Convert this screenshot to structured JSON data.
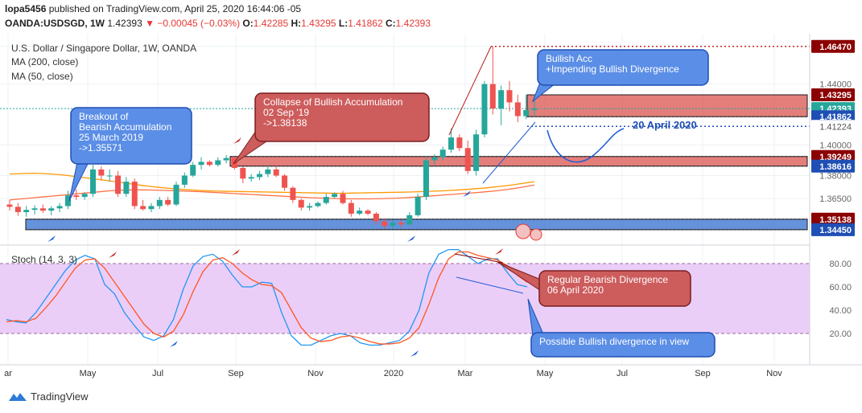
{
  "header": {
    "line1_user": "lopa5456",
    "line1_rest": "published on TradingView.com, April 25, 2020 16:44:06 -05",
    "symbol": "OANDA:USDSGD, 1W",
    "last": "1.42393",
    "change": "−0.00045 (−0.03%)",
    "open_label": "O:",
    "open": "1.42285",
    "high_label": "H:",
    "high": "1.43295",
    "low_label": "L:",
    "low": "1.41862",
    "close_label": "C:",
    "close": "1.42393"
  },
  "legend": {
    "title": "U.S. Dollar / Singapore Dollar, 1W, OANDA",
    "ma200": "MA (200, close)",
    "ma50": "MA (50, close)",
    "stoch": "Stoch (14, 3, 3)"
  },
  "footer": {
    "brand": "TradingView"
  },
  "colors": {
    "up": "#26a69a",
    "down": "#ef5350",
    "ma200": "#ff9800",
    "ma50": "#ff7043",
    "stoch_k": "#2196f3",
    "stoch_d": "#ff5722",
    "callout_blue": "#5b8ee6",
    "callout_red": "#cd5c5c",
    "zone_red": "#d9534f",
    "zone_blue": "#4a7fd4",
    "stoch_band": "#e8c6f7"
  },
  "chart_data": [
    {
      "type": "candlestick",
      "ylim": [
        1.336,
        1.473
      ],
      "x_labels": [
        "ar",
        "May",
        "Jul",
        "Sep",
        "Nov",
        "2020",
        "Mar",
        "May",
        "Jul",
        "Sep",
        "Nov"
      ],
      "price_ticks": [
        "1.46470",
        "1.44000",
        "1.40000",
        "1.38000",
        "1.36500"
      ],
      "price_badges": [
        {
          "value": "1.46470",
          "kind": "red"
        },
        {
          "value": "1.43295",
          "kind": "red"
        },
        {
          "value": "1.42393",
          "kind": "teal"
        },
        {
          "value": "1.41862",
          "kind": "blue"
        },
        {
          "value": "1.41224",
          "kind": "plain"
        },
        {
          "value": "1.39249",
          "kind": "red"
        },
        {
          "value": "1.38616",
          "kind": "blue"
        },
        {
          "value": "1.35138",
          "kind": "red"
        },
        {
          "value": "1.34450",
          "kind": "blue"
        }
      ],
      "candles": [
        [
          1.361,
          1.364,
          1.357,
          1.3595
        ],
        [
          1.3595,
          1.362,
          1.3535,
          1.356
        ],
        [
          1.356,
          1.36,
          1.353,
          1.3575
        ],
        [
          1.3575,
          1.3605,
          1.3545,
          1.3585
        ],
        [
          1.3585,
          1.361,
          1.3555,
          1.357
        ],
        [
          1.357,
          1.36,
          1.354,
          1.3585
        ],
        [
          1.3585,
          1.362,
          1.356,
          1.36
        ],
        [
          1.36,
          1.37,
          1.358,
          1.367
        ],
        [
          1.367,
          1.371,
          1.364,
          1.366
        ],
        [
          1.366,
          1.369,
          1.364,
          1.368
        ],
        [
          1.368,
          1.387,
          1.366,
          1.384
        ],
        [
          1.384,
          1.386,
          1.377,
          1.38
        ],
        [
          1.38,
          1.384,
          1.376,
          1.38
        ],
        [
          1.38,
          1.383,
          1.366,
          1.368
        ],
        [
          1.368,
          1.379,
          1.366,
          1.376
        ],
        [
          1.376,
          1.378,
          1.358,
          1.36
        ],
        [
          1.36,
          1.364,
          1.357,
          1.358
        ],
        [
          1.358,
          1.362,
          1.356,
          1.36
        ],
        [
          1.36,
          1.366,
          1.358,
          1.364
        ],
        [
          1.364,
          1.366,
          1.36,
          1.361
        ],
        [
          1.361,
          1.376,
          1.36,
          1.374
        ],
        [
          1.374,
          1.382,
          1.372,
          1.38
        ],
        [
          1.38,
          1.389,
          1.379,
          1.387
        ],
        [
          1.387,
          1.392,
          1.384,
          1.389
        ],
        [
          1.389,
          1.39,
          1.386,
          1.387
        ],
        [
          1.387,
          1.392,
          1.386,
          1.39
        ],
        [
          1.39,
          1.3935,
          1.388,
          1.3915
        ],
        [
          1.3915,
          1.3925,
          1.384,
          1.385
        ],
        [
          1.385,
          1.386,
          1.375,
          1.378
        ],
        [
          1.378,
          1.381,
          1.376,
          1.379
        ],
        [
          1.379,
          1.383,
          1.377,
          1.381
        ],
        [
          1.381,
          1.387,
          1.379,
          1.384
        ],
        [
          1.384,
          1.387,
          1.379,
          1.38
        ],
        [
          1.38,
          1.381,
          1.37,
          1.372
        ],
        [
          1.372,
          1.373,
          1.362,
          1.364
        ],
        [
          1.364,
          1.365,
          1.357,
          1.359
        ],
        [
          1.359,
          1.362,
          1.357,
          1.36
        ],
        [
          1.36,
          1.363,
          1.359,
          1.362
        ],
        [
          1.362,
          1.368,
          1.361,
          1.366
        ],
        [
          1.366,
          1.369,
          1.365,
          1.368
        ],
        [
          1.368,
          1.37,
          1.361,
          1.362
        ],
        [
          1.362,
          1.364,
          1.353,
          1.355
        ],
        [
          1.355,
          1.359,
          1.354,
          1.357
        ],
        [
          1.357,
          1.358,
          1.354,
          1.355
        ],
        [
          1.355,
          1.356,
          1.348,
          1.35
        ],
        [
          1.35,
          1.352,
          1.345,
          1.347
        ],
        [
          1.347,
          1.351,
          1.345,
          1.349
        ],
        [
          1.349,
          1.351,
          1.346,
          1.348
        ],
        [
          1.348,
          1.356,
          1.347,
          1.354
        ],
        [
          1.354,
          1.368,
          1.353,
          1.366
        ],
        [
          1.366,
          1.393,
          1.364,
          1.39
        ],
        [
          1.39,
          1.394,
          1.387,
          1.392
        ],
        [
          1.392,
          1.399,
          1.39,
          1.397
        ],
        [
          1.397,
          1.411,
          1.395,
          1.405
        ],
        [
          1.405,
          1.407,
          1.396,
          1.398
        ],
        [
          1.398,
          1.403,
          1.381,
          1.383
        ],
        [
          1.383,
          1.41,
          1.38,
          1.407
        ],
        [
          1.407,
          1.442,
          1.405,
          1.44
        ],
        [
          1.44,
          1.4647,
          1.42,
          1.424
        ],
        [
          1.424,
          1.439,
          1.413,
          1.436
        ],
        [
          1.436,
          1.442,
          1.422,
          1.428
        ],
        [
          1.428,
          1.433,
          1.415,
          1.419
        ],
        [
          1.419,
          1.433,
          1.417,
          1.423
        ],
        [
          1.423,
          1.433,
          1.4186,
          1.4239
        ]
      ],
      "ma200": [
        1.381,
        1.3812,
        1.3814,
        1.3815,
        1.3813,
        1.381,
        1.3806,
        1.38,
        1.3793,
        1.3786,
        1.3779,
        1.3772,
        1.3765,
        1.3758,
        1.375,
        1.3742,
        1.3735,
        1.3728,
        1.3722,
        1.3717,
        1.3712,
        1.3708,
        1.3705,
        1.3702,
        1.37,
        1.3698,
        1.3697,
        1.3696,
        1.3695,
        1.3694,
        1.3693,
        1.3692,
        1.3691,
        1.369,
        1.3689,
        1.3688,
        1.3687,
        1.3686,
        1.3685,
        1.3684,
        1.3684,
        1.3685,
        1.3686,
        1.3687,
        1.3688,
        1.3689,
        1.369,
        1.3691,
        1.3692,
        1.3694,
        1.3696,
        1.3698,
        1.37,
        1.3703,
        1.3706,
        1.371,
        1.3714,
        1.3718,
        1.3724,
        1.373,
        1.3736,
        1.3744,
        1.3752,
        1.376
      ],
      "ma50": [
        1.364,
        1.3645,
        1.365,
        1.3655,
        1.366,
        1.3665,
        1.367,
        1.3675,
        1.368,
        1.3685,
        1.369,
        1.3695,
        1.37,
        1.3703,
        1.3705,
        1.3706,
        1.3706,
        1.3705,
        1.3704,
        1.3702,
        1.37,
        1.3698,
        1.3696,
        1.3694,
        1.3691,
        1.3688,
        1.3685,
        1.3682,
        1.3679,
        1.3676,
        1.3673,
        1.367,
        1.3667,
        1.3664,
        1.3661,
        1.3658,
        1.3655,
        1.3653,
        1.3651,
        1.3649,
        1.3648,
        1.3647,
        1.3647,
        1.3647,
        1.3648,
        1.3649,
        1.3651,
        1.3653,
        1.3656,
        1.366,
        1.3664,
        1.3668,
        1.3672,
        1.3676,
        1.368,
        1.3684,
        1.3688,
        1.3693,
        1.3698,
        1.3704,
        1.3711,
        1.3719,
        1.3728,
        1.3738
      ],
      "zones": [
        {
          "from": 1.38616,
          "to": 1.39249,
          "kind": "red"
        },
        {
          "from": 1.3445,
          "to": 1.35138,
          "kind": "blue"
        },
        {
          "from": 1.41862,
          "to": 1.43295,
          "kind": "red"
        }
      ],
      "annotations": [
        {
          "kind": "blue",
          "lines": [
            "Breakout of",
            "Bearish Accumulation",
            "25 March 2019",
            "->1.35571"
          ]
        },
        {
          "kind": "red",
          "lines": [
            "Collapse of Bullish Accumulation",
            "02 Sep '19",
            "->1.38138"
          ]
        },
        {
          "kind": "blue",
          "lines": [
            "Bullish Acc",
            "+Impending Bullish Divergence"
          ]
        },
        {
          "kind": "text",
          "lines": [
            "20 April 2020"
          ]
        }
      ]
    },
    {
      "type": "line",
      "title": "Stoch (14, 3, 3)",
      "ylim": [
        0,
        100
      ],
      "y_ticks": [
        "80.00",
        "60.00",
        "40.00",
        "20.00"
      ],
      "band": [
        20,
        80
      ],
      "series": [
        {
          "name": "%K",
          "values": [
            32,
            30,
            29,
            38,
            50,
            62,
            74,
            83,
            87,
            84,
            62,
            54,
            38,
            27,
            17,
            14,
            18,
            32,
            58,
            78,
            86,
            88,
            82,
            70,
            60,
            60,
            64,
            63,
            38,
            18,
            10,
            10,
            14,
            18,
            20,
            18,
            12,
            10,
            10,
            12,
            14,
            22,
            40,
            72,
            88,
            92,
            92,
            86,
            80,
            84,
            84,
            72,
            62,
            60
          ]
        },
        {
          "name": "%D",
          "values": [
            30,
            31,
            30,
            33,
            42,
            52,
            64,
            76,
            83,
            84,
            76,
            64,
            52,
            40,
            28,
            20,
            17,
            22,
            36,
            56,
            73,
            83,
            85,
            80,
            72,
            66,
            62,
            61,
            55,
            40,
            25,
            16,
            13,
            14,
            17,
            18,
            16,
            13,
            11,
            11,
            12,
            16,
            25,
            45,
            68,
            84,
            90,
            90,
            87,
            85,
            83,
            78,
            70,
            64
          ]
        }
      ],
      "annotations": [
        {
          "kind": "red",
          "lines": [
            "Regular Bearish Divergence",
            "06 April 2020"
          ]
        },
        {
          "kind": "blue",
          "lines": [
            "Possible Bullish divergence in view"
          ]
        }
      ]
    }
  ]
}
